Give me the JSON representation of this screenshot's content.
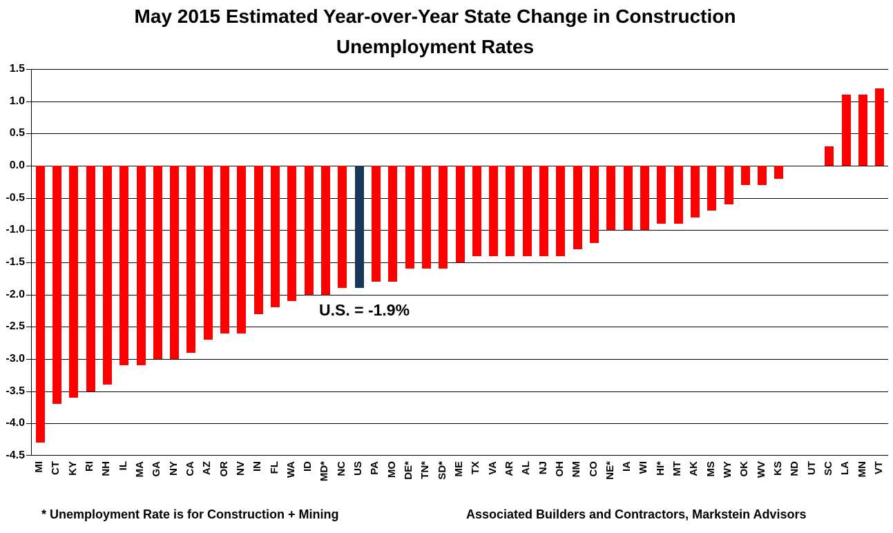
{
  "title": {
    "line1": "May 2015 Estimated Year-over-Year State Change in Construction",
    "line2": "Unemployment Rates"
  },
  "annotation": {
    "us_label": "U.S. = -1.9%"
  },
  "footnotes": {
    "left": "* Unemployment Rate is for Construction + Mining",
    "right": "Associated Builders and Contractors, Markstein Advisors"
  },
  "colors": {
    "bar": "#FF0000",
    "highlight_bar": "#17375D",
    "grid": "#000000",
    "background": "#FFFFFF"
  },
  "chart_data": {
    "type": "bar",
    "title": "May 2015 Estimated Year-over-Year State Change in Construction Unemployment Rates",
    "xlabel": "",
    "ylabel": "",
    "ylim": [
      -4.5,
      1.5
    ],
    "ytick_step": 0.5,
    "yticklabels": [
      "1.5",
      "1.0",
      "0.5",
      "0.0",
      "-0.5",
      "-1.0",
      "-1.5",
      "-2.0",
      "-2.5",
      "-3.0",
      "-3.5",
      "-4.0",
      "-4.5"
    ],
    "grid": true,
    "legend": false,
    "highlight_category": "US",
    "annotation": "U.S. = -1.9%",
    "categories": [
      "MI",
      "CT",
      "KY",
      "RI",
      "NH",
      "IL",
      "MA",
      "GA",
      "NY",
      "CA",
      "AZ",
      "OR",
      "NV",
      "IN",
      "FL",
      "WA",
      "ID",
      "MD*",
      "NC",
      "US",
      "PA",
      "MO",
      "DE*",
      "TN*",
      "SD*",
      "ME",
      "TX",
      "VA",
      "AR",
      "AL",
      "NJ",
      "OH",
      "NM",
      "CO",
      "NE*",
      "IA",
      "WI",
      "HI*",
      "MT",
      "AK",
      "MS",
      "WY",
      "OK",
      "WV",
      "KS",
      "ND",
      "UT",
      "SC",
      "LA",
      "MN",
      "VT"
    ],
    "values": [
      -4.3,
      -3.7,
      -3.6,
      -3.5,
      -3.4,
      -3.1,
      -3.1,
      -3.0,
      -3.0,
      -2.9,
      -2.7,
      -2.6,
      -2.6,
      -2.3,
      -2.2,
      -2.1,
      -2.0,
      -2.0,
      -1.9,
      -1.9,
      -1.8,
      -1.8,
      -1.6,
      -1.6,
      -1.6,
      -1.5,
      -1.4,
      -1.4,
      -1.4,
      -1.4,
      -1.4,
      -1.4,
      -1.3,
      -1.2,
      -1.0,
      -1.0,
      -1.0,
      -0.9,
      -0.9,
      -0.8,
      -0.7,
      -0.6,
      -0.3,
      -0.3,
      -0.2,
      0.0,
      0.0,
      0.3,
      1.1,
      1.1,
      1.2
    ]
  }
}
